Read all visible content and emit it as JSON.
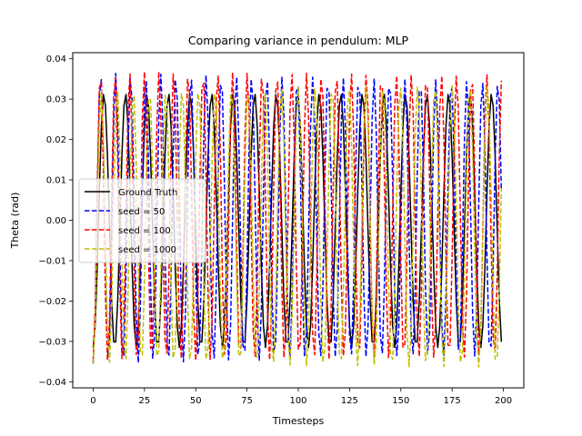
{
  "chart_data": {
    "type": "line",
    "title": "Comparing variance in pendulum: MLP",
    "xlabel": "Timesteps",
    "ylabel": "Theta (rad)",
    "xlim": [
      -9.95,
      209.95
    ],
    "ylim": [
      -0.0415,
      0.0415
    ],
    "xticks": [
      0,
      25,
      50,
      75,
      100,
      125,
      150,
      175,
      200
    ],
    "yticks": [
      -0.04,
      -0.03,
      -0.02,
      -0.01,
      0.0,
      0.01,
      0.02,
      0.03,
      0.04
    ],
    "xtick_labels": [
      "0",
      "25",
      "50",
      "75",
      "100",
      "125",
      "150",
      "175",
      "200"
    ],
    "ytick_labels": [
      "−0.04",
      "−0.03",
      "−0.02",
      "−0.01",
      "0.00",
      "0.01",
      "0.02",
      "0.03",
      "0.04"
    ],
    "grid": false,
    "legend_position": "center-left",
    "series": [
      {
        "name": "Ground Truth",
        "color": "#000000",
        "dash": "solid",
        "x0": 0,
        "amplitude": 0.0315,
        "period": 10.5,
        "phase": 0.0,
        "n_points": 200
      },
      {
        "name": "seed = 50",
        "color": "#0000ff",
        "dash": "dashed",
        "x0": 0,
        "amplitude_start": 0.036,
        "amplitude_end": 0.034,
        "offset": 0.0005,
        "period_start": 7.3,
        "period_end": 7.6,
        "n_points": 200
      },
      {
        "name": "seed = 100",
        "color": "#ff0000",
        "dash": "dashed",
        "x0": 0,
        "amplitude_start": 0.036,
        "amplitude_end": 0.035,
        "offset": 0.001,
        "period_start": 7.1,
        "period_end": 7.4,
        "n_points": 200
      },
      {
        "name": "seed = 1000",
        "color": "#bfbf00",
        "dash": "dashed",
        "x0": 0,
        "amplitude_start": 0.034,
        "amplitude_end": 0.035,
        "offset": -0.0015,
        "period_start": 7.8,
        "period_end": 8.6,
        "n_points": 200
      }
    ]
  }
}
